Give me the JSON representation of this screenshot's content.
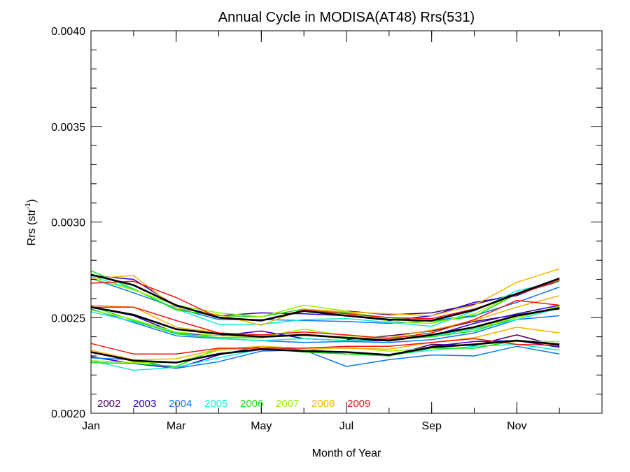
{
  "chart_data": {
    "type": "line",
    "title": "Annual Cycle in MODISA(AT48) Rrs(531)",
    "xlabel": "Month of Year",
    "ylabel_main": "Rrs (str",
    "ylabel_sup": "-1",
    "ylabel_close": ")",
    "xlim": [
      1,
      13
    ],
    "ylim": [
      0.002,
      0.004
    ],
    "x_ticks": [
      {
        "value": 1,
        "label": "Jan"
      },
      {
        "value": 3,
        "label": "Mar"
      },
      {
        "value": 5,
        "label": "May"
      },
      {
        "value": 7,
        "label": "Jul"
      },
      {
        "value": 9,
        "label": "Sep"
      },
      {
        "value": 11,
        "label": "Nov"
      }
    ],
    "y_ticks": [
      {
        "value": 0.002,
        "label": "0.0020"
      },
      {
        "value": 0.0025,
        "label": "0.0025"
      },
      {
        "value": 0.003,
        "label": "0.0030"
      },
      {
        "value": 0.0035,
        "label": "0.0035"
      },
      {
        "value": 0.004,
        "label": "0.0040"
      }
    ],
    "legend_placement": "bottom-left",
    "legend": [
      {
        "label": "2002",
        "color": "#4b0060"
      },
      {
        "label": "2003",
        "color": "#2b00c8"
      },
      {
        "label": "2004",
        "color": "#0a78ff"
      },
      {
        "label": "2005",
        "color": "#10eed0"
      },
      {
        "label": "2006",
        "color": "#14e010"
      },
      {
        "label": "2007",
        "color": "#96f000"
      },
      {
        "label": "2008",
        "color": "#f5b400"
      },
      {
        "label": "2009",
        "color": "#f01414"
      }
    ],
    "series": [
      {
        "color": "#4b0060",
        "x": [
          7,
          8,
          9,
          10,
          11,
          12
        ],
        "y": [
          0.002535,
          0.002515,
          0.002525,
          0.00257,
          0.002625,
          0.00269
        ]
      },
      {
        "color": "#2b00c8",
        "x": [
          1,
          2,
          3,
          4,
          5,
          6,
          7,
          8,
          9,
          10,
          11,
          12
        ],
        "y": [
          0.00272,
          0.0027,
          0.00256,
          0.00251,
          0.002525,
          0.00252,
          0.00251,
          0.002485,
          0.00251,
          0.00258,
          0.002615,
          0.002705
        ]
      },
      {
        "color": "#0a78ff",
        "x": [
          1,
          2,
          3,
          4,
          5,
          6,
          7,
          8,
          9,
          10,
          11,
          12
        ],
        "y": [
          0.002705,
          0.00263,
          0.00255,
          0.00249,
          0.00249,
          0.002485,
          0.00248,
          0.00247,
          0.002485,
          0.00251,
          0.00258,
          0.00266
        ]
      },
      {
        "color": "#10eed0",
        "x": [
          1,
          2,
          3,
          4,
          5,
          6,
          7,
          8,
          9,
          10,
          11,
          12
        ],
        "y": [
          0.002715,
          0.00265,
          0.002545,
          0.002465,
          0.002465,
          0.00249,
          0.002495,
          0.002475,
          0.002455,
          0.002535,
          0.00264,
          0.00269
        ]
      },
      {
        "color": "#14e010",
        "x": [
          1,
          2,
          3,
          4,
          5,
          6,
          7,
          8,
          9,
          10,
          11,
          12
        ],
        "y": [
          0.002745,
          0.00265,
          0.00254,
          0.00251,
          0.002505,
          0.002545,
          0.002525,
          0.0025,
          0.00248,
          0.002505,
          0.002625,
          0.002705
        ]
      },
      {
        "color": "#96f000",
        "x": [
          1,
          2,
          3,
          4,
          5,
          6,
          7,
          8,
          9,
          10,
          11,
          12
        ],
        "y": [
          0.002705,
          0.002645,
          0.002565,
          0.002525,
          0.002505,
          0.002565,
          0.002535,
          0.00248,
          0.00247,
          0.00252,
          0.002625,
          0.0027
        ]
      },
      {
        "color": "#f5b400",
        "x": [
          1,
          2,
          3,
          4,
          5,
          6,
          7,
          8,
          9,
          10,
          11,
          12
        ],
        "y": [
          0.002705,
          0.00272,
          0.00255,
          0.002515,
          0.00246,
          0.002545,
          0.00253,
          0.00252,
          0.00251,
          0.002565,
          0.002685,
          0.002755
        ]
      },
      {
        "color": "#f01414",
        "x": [
          1,
          2,
          3,
          4,
          5,
          6,
          7,
          8,
          9,
          10,
          11,
          12
        ],
        "y": [
          0.00268,
          0.00269,
          0.002605,
          0.0025,
          0.002485,
          0.00254,
          0.00252,
          0.0025,
          0.002495,
          0.002545,
          0.00262,
          0.002695
        ]
      },
      {
        "color": "#000000",
        "width": 2.6,
        "x": [
          1,
          2,
          3,
          4,
          5,
          6,
          7,
          8,
          9,
          10,
          11,
          12
        ],
        "y": [
          0.002725,
          0.00267,
          0.002565,
          0.0025,
          0.002485,
          0.002535,
          0.00251,
          0.00249,
          0.002485,
          0.00254,
          0.002625,
          0.002705
        ]
      },
      {
        "color": "#4b0060",
        "x": [
          7,
          8,
          9,
          10,
          11,
          12
        ],
        "y": [
          0.002385,
          0.002405,
          0.00243,
          0.00248,
          0.002515,
          0.002545
        ]
      },
      {
        "color": "#2b00c8",
        "x": [
          1,
          2,
          3,
          4,
          5,
          6,
          7,
          8,
          9,
          10,
          11,
          12
        ],
        "y": [
          0.002555,
          0.00251,
          0.00242,
          0.002405,
          0.00243,
          0.00239,
          0.00238,
          0.00238,
          0.002405,
          0.00247,
          0.00252,
          0.002565
        ]
      },
      {
        "color": "#0a78ff",
        "x": [
          1,
          2,
          3,
          4,
          5,
          6,
          7,
          8,
          9,
          10,
          11,
          12
        ],
        "y": [
          0.002545,
          0.002475,
          0.002405,
          0.00239,
          0.00238,
          0.00237,
          0.002375,
          0.00237,
          0.002385,
          0.00242,
          0.00249,
          0.00251
        ]
      },
      {
        "color": "#10eed0",
        "x": [
          1,
          2,
          3,
          4,
          5,
          6,
          7,
          8,
          9,
          10,
          11,
          12
        ],
        "y": [
          0.00253,
          0.00248,
          0.00242,
          0.00239,
          0.00238,
          0.00239,
          0.00238,
          0.002385,
          0.002405,
          0.00244,
          0.00249,
          0.00255
        ]
      },
      {
        "color": "#14e010",
        "x": [
          1,
          2,
          3,
          4,
          5,
          6,
          7,
          8,
          9,
          10,
          11,
          12
        ],
        "y": [
          0.00256,
          0.002485,
          0.002415,
          0.002395,
          0.002395,
          0.00241,
          0.00239,
          0.002385,
          0.0024,
          0.00243,
          0.0025,
          0.002555
        ]
      },
      {
        "color": "#96f000",
        "x": [
          1,
          2,
          3,
          4,
          5,
          6,
          7,
          8,
          9,
          10,
          11,
          12
        ],
        "y": [
          0.00254,
          0.00249,
          0.002425,
          0.002405,
          0.0024,
          0.00244,
          0.002405,
          0.002395,
          0.00241,
          0.002445,
          0.0025,
          0.00256
        ]
      },
      {
        "color": "#f5b400",
        "x": [
          1,
          2,
          3,
          4,
          5,
          6,
          7,
          8,
          9,
          10,
          11,
          12
        ],
        "y": [
          0.002565,
          0.002555,
          0.00245,
          0.00242,
          0.002395,
          0.002415,
          0.002395,
          0.002395,
          0.002435,
          0.002485,
          0.002555,
          0.002615
        ]
      },
      {
        "color": "#f01414",
        "x": [
          1,
          2,
          3,
          4,
          5,
          6,
          7,
          8,
          9,
          10,
          11,
          12
        ],
        "y": [
          0.002555,
          0.002555,
          0.002485,
          0.00242,
          0.00241,
          0.002425,
          0.00241,
          0.00239,
          0.00242,
          0.00249,
          0.00259,
          0.002565
        ]
      },
      {
        "color": "#000000",
        "width": 2.6,
        "x": [
          1,
          2,
          3,
          4,
          5,
          6,
          7,
          8,
          9,
          10,
          11,
          12
        ],
        "y": [
          0.002555,
          0.002515,
          0.00244,
          0.002415,
          0.0024,
          0.00241,
          0.002395,
          0.00238,
          0.00241,
          0.00245,
          0.00251,
          0.00255
        ]
      },
      {
        "color": "#4b0060",
        "x": [
          7,
          8,
          9,
          10,
          11,
          12
        ],
        "y": [
          0.00232,
          0.0023,
          0.00236,
          0.002355,
          0.00241,
          0.00235
        ]
      },
      {
        "color": "#2b00c8",
        "x": [
          1,
          2,
          3,
          4,
          5,
          6,
          7,
          8,
          9,
          10,
          11,
          12
        ],
        "y": [
          0.002295,
          0.00226,
          0.002235,
          0.002305,
          0.00235,
          0.00233,
          0.00232,
          0.0023,
          0.00235,
          0.002375,
          0.00238,
          0.002345
        ]
      },
      {
        "color": "#0a78ff",
        "x": [
          1,
          2,
          3,
          4,
          5,
          6,
          7,
          8,
          9,
          10,
          11,
          12
        ],
        "y": [
          0.00229,
          0.00228,
          0.002235,
          0.00227,
          0.002325,
          0.00233,
          0.002245,
          0.00228,
          0.002305,
          0.0023,
          0.00235,
          0.00231
        ]
      },
      {
        "color": "#10eed0",
        "x": [
          1,
          2,
          3,
          4,
          5,
          6,
          7,
          8,
          9,
          10,
          11,
          12
        ],
        "y": [
          0.002275,
          0.002225,
          0.00224,
          0.00229,
          0.002335,
          0.00233,
          0.00231,
          0.002305,
          0.00233,
          0.00235,
          0.00236,
          0.00233
        ]
      },
      {
        "color": "#14e010",
        "x": [
          1,
          2,
          3,
          4,
          5,
          6,
          7,
          8,
          9,
          10,
          11,
          12
        ],
        "y": [
          0.002265,
          0.00226,
          0.002245,
          0.00234,
          0.00234,
          0.00232,
          0.00231,
          0.0023,
          0.00234,
          0.00234,
          0.00238,
          0.00236
        ]
      },
      {
        "color": "#96f000",
        "x": [
          1,
          2,
          3,
          4,
          5,
          6,
          7,
          8,
          9,
          10,
          11,
          12
        ],
        "y": [
          0.002275,
          0.002265,
          0.002265,
          0.00233,
          0.00234,
          0.00233,
          0.002345,
          0.002325,
          0.00234,
          0.00236,
          0.002375,
          0.002375
        ]
      },
      {
        "color": "#f5b400",
        "x": [
          1,
          2,
          3,
          4,
          5,
          6,
          7,
          8,
          9,
          10,
          11,
          12
        ],
        "y": [
          0.00233,
          0.00228,
          0.002285,
          0.002335,
          0.00235,
          0.00234,
          0.00234,
          0.002335,
          0.00237,
          0.002395,
          0.00245,
          0.00242
        ]
      },
      {
        "color": "#f01414",
        "x": [
          1,
          2,
          3,
          4,
          5,
          6,
          7,
          8,
          9,
          10,
          11,
          12
        ],
        "y": [
          0.002365,
          0.00231,
          0.00231,
          0.00234,
          0.00234,
          0.00234,
          0.00235,
          0.00235,
          0.00237,
          0.00239,
          0.00236,
          0.002355
        ]
      },
      {
        "color": "#000000",
        "width": 2.6,
        "x": [
          1,
          2,
          3,
          4,
          5,
          6,
          7,
          8,
          9,
          10,
          11,
          12
        ],
        "y": [
          0.00232,
          0.002275,
          0.002265,
          0.00231,
          0.002335,
          0.002325,
          0.00232,
          0.002305,
          0.002345,
          0.00236,
          0.00238,
          0.00236
        ]
      }
    ]
  }
}
